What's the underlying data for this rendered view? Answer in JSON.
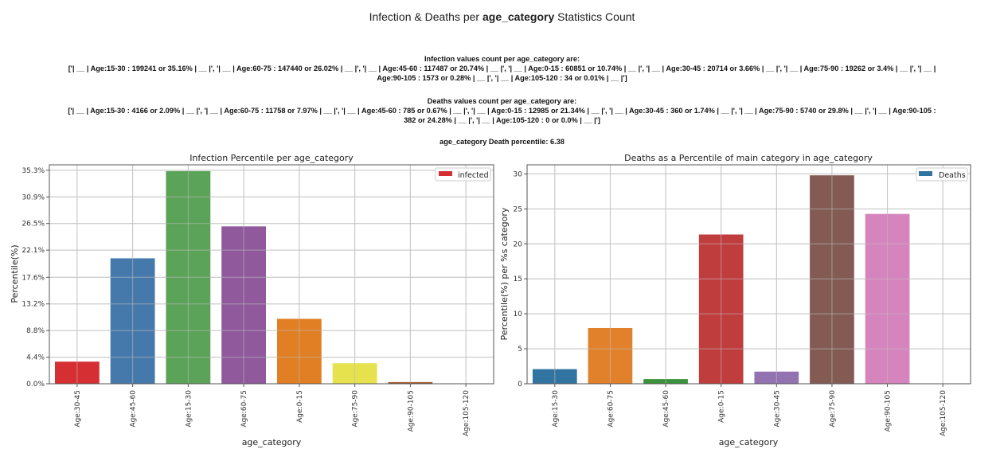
{
  "header": {
    "title_prefix": "Infection & Deaths per ",
    "title_bold": "age_category",
    "title_suffix": " Statistics Count"
  },
  "infection_stats": {
    "heading": "Infection values count per age_category are:",
    "line1": "['| __ | Age:15-30 : 199241 or 35.16% | __ |', '| __ | Age:60-75 : 147440 or 26.02% | __ |', '| __ | Age:45-60 : 117487 or 20.74% | __ |', '| __ | Age:0-15 : 60851 or 10.74% | __ |', '| __ | Age:30-45 : 20714 or 3.66% | __ |', '| __ | Age:75-90 : 19262 or 3.4% | __ |', '| __ |",
    "line2": "Age:90-105 : 1573 or 0.28% | __ |', '| __ | Age:105-120 : 34 or 0.01% | __ |']"
  },
  "deaths_stats": {
    "heading": "Deaths values count per age_category are:",
    "line1": "['| __ | Age:15-30 : 4166 or 2.09% | __ |', '| __ | Age:60-75 : 11758 or 7.97% | __ |', '| __ | Age:45-60 : 785 or 0.67% | __ |', '| __ | Age:0-15 : 12985 or 21.34% | __ |', '| __ | Age:30-45 : 360 or 1.74% | __ |', '| __ | Age:75-90 : 5740 or 29.8% | __ |', '| __ | Age:90-105 :",
    "line2": "382 or 24.28% | __ |', '| __ | Age:105-120 : 0 or 0.0% | __ |']"
  },
  "death_percentile": {
    "text": "age_category Death percentile: 6.38"
  },
  "chart_data": [
    {
      "type": "bar",
      "title": "Infection Percentile per age_category",
      "xlabel": "age_category",
      "ylabel": "Percentile(%)",
      "categories": [
        "Age:30-45",
        "Age:45-60",
        "Age:15-30",
        "Age:60-75",
        "Age:0-15",
        "Age:75-90",
        "Age:90-105",
        "Age:105-120"
      ],
      "values": [
        3.66,
        20.74,
        35.16,
        26.02,
        10.74,
        3.4,
        0.28,
        0.01
      ],
      "colors": [
        "#d62f33",
        "#4679ab",
        "#5ba358",
        "#8f599c",
        "#e07f24",
        "#e6e24e",
        "#a45a2f",
        "#f29bc3"
      ],
      "yticks": [
        0.0,
        4.4,
        8.8,
        13.2,
        17.6,
        22.1,
        26.5,
        30.9,
        35.3
      ],
      "ytick_labels": [
        "0.0%",
        "4.4%",
        "8.8%",
        "13.2%",
        "17.6%",
        "22.1%",
        "26.5%",
        "30.9%",
        "35.3%"
      ],
      "ylim": [
        0,
        36.2
      ],
      "grid": true,
      "legend": {
        "label": "infected",
        "color": "#d62f33",
        "placement": "top-right"
      }
    },
    {
      "type": "bar",
      "title": "Deaths as a Percentile of main category in age_category",
      "xlabel": "age_category",
      "ylabel": "Percentile(%) per %s category",
      "categories": [
        "Age:15-30",
        "Age:60-75",
        "Age:45-60",
        "Age:0-15",
        "Age:30-45",
        "Age:75-90",
        "Age:90-105",
        "Age:105-120"
      ],
      "values": [
        2.09,
        7.97,
        0.67,
        21.34,
        1.74,
        29.8,
        24.28,
        0.0
      ],
      "colors": [
        "#3274a1",
        "#e1812c",
        "#3a923a",
        "#c03d3e",
        "#9372b2",
        "#845b53",
        "#d684bd",
        "#7f7f7f"
      ],
      "yticks": [
        0,
        5,
        10,
        15,
        20,
        25,
        30
      ],
      "ytick_labels": [
        "0",
        "5",
        "10",
        "15",
        "20",
        "25",
        "30"
      ],
      "ylim": [
        0,
        31.3
      ],
      "grid": true,
      "legend": {
        "label": "Deaths",
        "color": "#3274a1",
        "placement": "top-right"
      }
    }
  ]
}
